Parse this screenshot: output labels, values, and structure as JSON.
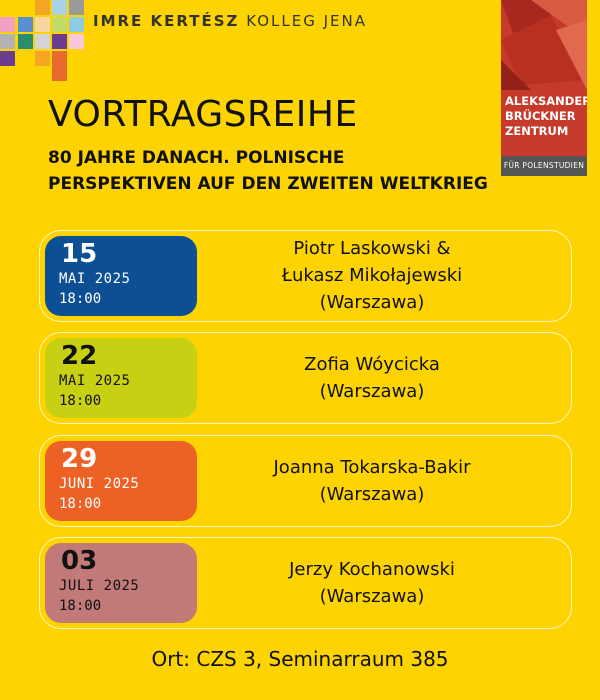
{
  "header": {
    "kolleg_bold": "IMRE KERTÉSZ",
    "kolleg_rest": "KOLLEG JENA"
  },
  "partner": {
    "name_lines": [
      "ALEKSANDER",
      "BRÜCKNER",
      "ZENTRUM"
    ],
    "tagline": "FÜR POLENSTUDIEN",
    "color": "#c63a2c"
  },
  "title": "VORTRAGSREIHE",
  "subtitle": "80 JAHRE DANACH. POLNISCHE PERSPEKTIVEN AUF DEN ZWEITEN WELTKRIEG",
  "events": [
    {
      "day": "15",
      "month": "MAI 2025",
      "time": "18:00",
      "speaker_lines": [
        "Piotr Laskowski &",
        "Łukasz Mikołajewski",
        "(Warszawa)"
      ],
      "color": "#0d4f94",
      "text_color": "#ffffff"
    },
    {
      "day": "22",
      "month": "MAI 2025",
      "time": "18:00",
      "speaker_lines": [
        "Zofia Wóycicka",
        "(Warszawa)"
      ],
      "color": "#c8d013",
      "text_color": "#111111"
    },
    {
      "day": "29",
      "month": "JUNI 2025",
      "time": "18:00",
      "speaker_lines": [
        "Joanna Tokarska-Bakir",
        "(Warszawa)"
      ],
      "color": "#ee6125",
      "text_color": "#ffffff"
    },
    {
      "day": "03",
      "month": "JULI 2025",
      "time": "18:00",
      "speaker_lines": [
        "Jerzy Kochanowski",
        "(Warszawa)"
      ],
      "color": "#c27a78",
      "text_color": "#111111"
    }
  ],
  "location": "Ort: CZS 3, Seminarraum 385"
}
